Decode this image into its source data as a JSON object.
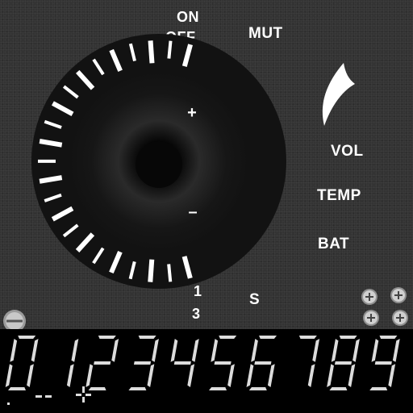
{
  "labels": {
    "on": "ON",
    "off": "OFF",
    "mut": "MUT",
    "vol": "VOL",
    "temp": "TEMP",
    "bat": "BAT",
    "ratio_top": "1",
    "ratio_bottom": "3",
    "s": "S"
  },
  "dial": {
    "plus": "+",
    "minus": "–"
  },
  "lcd": {
    "digits": [
      "0",
      "1",
      "2",
      "3",
      "4",
      "5",
      "6",
      "7",
      "8",
      "9"
    ],
    "symbols": [
      ".",
      "--",
      "+"
    ]
  },
  "icons": {
    "volume_arc": "crescent-swoosh-icon",
    "screw": "screw-icon"
  },
  "colors": {
    "panel": "#333333",
    "knob": "#111111",
    "text": "#ffffff",
    "lcd_bg": "#000000",
    "lcd_segment": "#dcdcdc"
  }
}
